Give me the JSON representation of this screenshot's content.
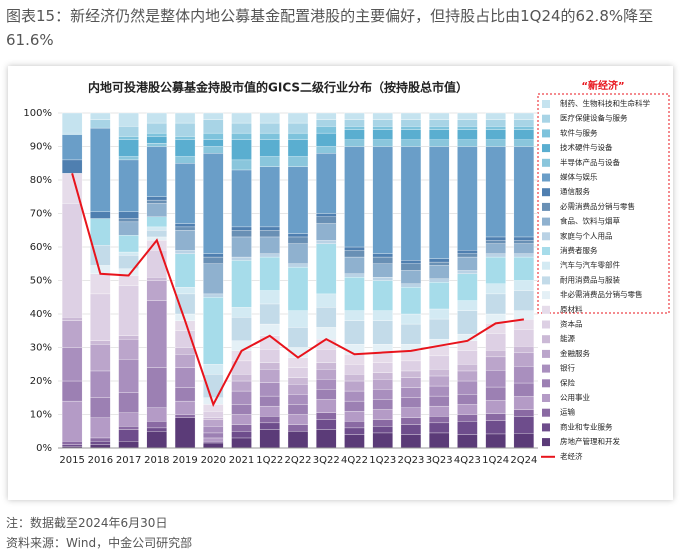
{
  "header": {
    "title": "图表15：新经济仍然是整体内地公募基金配置港股的主要偏好，但持股占比由1Q24的62.8%降至61.6%"
  },
  "footer": {
    "note": "注：数据截至2024年6月30日",
    "source": "资料来源：Wind，中金公司研究部"
  },
  "chart_data": {
    "type": "bar",
    "stacked": true,
    "title": "内地可投港股公募基金持股市值的GICS二级行业分布（按持股总市值）",
    "annotation": "“新经济”",
    "categories": [
      "2015",
      "2016",
      "2017",
      "2018",
      "2019",
      "2020",
      "2021",
      "1Q22",
      "2Q22",
      "3Q22",
      "4Q22",
      "1Q23",
      "2Q23",
      "3Q23",
      "4Q23",
      "1Q24",
      "2Q24"
    ],
    "ylim": [
      0,
      100
    ],
    "yticks": [
      {
        "value": 0,
        "label": "0%"
      },
      {
        "value": 10,
        "label": "10%"
      },
      {
        "value": 20,
        "label": "20%"
      },
      {
        "value": 30,
        "label": "30%"
      },
      {
        "value": 40,
        "label": "40%"
      },
      {
        "value": 50,
        "label": "50%"
      },
      {
        "value": 60,
        "label": "60%"
      },
      {
        "value": 70,
        "label": "70%"
      },
      {
        "value": 80,
        "label": "80%"
      },
      {
        "value": 90,
        "label": "90%"
      },
      {
        "value": 100,
        "label": "100%"
      }
    ],
    "grid": true,
    "series": [
      {
        "name": "制药、生物科技和生命科学",
        "color": "#c5e3ef",
        "values": [
          6,
          2,
          4,
          3,
          3,
          2,
          3,
          3,
          3,
          2,
          2,
          2,
          2,
          2,
          2,
          2,
          2
        ]
      },
      {
        "name": "医疗保健设备与服务",
        "color": "#a8d4e6",
        "values": [
          0.5,
          2.5,
          3,
          3,
          4,
          4,
          3,
          3,
          3,
          2,
          2,
          2,
          2,
          2,
          2,
          2,
          2
        ]
      },
      {
        "name": "软件与服务",
        "color": "#7ec3dc",
        "values": [
          0,
          0,
          1,
          1,
          1,
          2,
          2,
          2,
          2,
          2,
          1,
          1,
          1,
          1,
          1,
          1,
          1
        ]
      },
      {
        "name": "技术硬件与设备",
        "color": "#5aaed0",
        "values": [
          0,
          0,
          5,
          2,
          5,
          2,
          6,
          5,
          5,
          4,
          3,
          3,
          3,
          3,
          3,
          3,
          3
        ]
      },
      {
        "name": "半导体产品与设备",
        "color": "#8ac6dc",
        "values": [
          0,
          0,
          1,
          1,
          2,
          2,
          3,
          3,
          3,
          2,
          2,
          2,
          2,
          2,
          2,
          2,
          2
        ]
      },
      {
        "name": "媒体与娱乐",
        "color": "#6a9ec8",
        "values": [
          7.5,
          25,
          15.5,
          15,
          18,
          30,
          17,
          18,
          20,
          18,
          30,
          32,
          34,
          33.5,
          31,
          27,
          27
        ]
      },
      {
        "name": "通信服务",
        "color": "#4f7fb0",
        "values": [
          4,
          2,
          2,
          1,
          1,
          1,
          1,
          1,
          1,
          1,
          1,
          1,
          1,
          1,
          1,
          1,
          1
        ]
      },
      {
        "name": "必需消费品分销与零售",
        "color": "#6990b5",
        "values": [
          0,
          0,
          1,
          1,
          1,
          2,
          2,
          2,
          2,
          2,
          2,
          2,
          2,
          1,
          1,
          1,
          1
        ]
      },
      {
        "name": "食品、饮料与烟草",
        "color": "#8fb1cf",
        "values": [
          0,
          0,
          4,
          4,
          6,
          9,
          6,
          5,
          6,
          5,
          5,
          4,
          4,
          4,
          4,
          3,
          3
        ]
      },
      {
        "name": "家庭与个人用品",
        "color": "#b9d2e5",
        "values": [
          0,
          0,
          0,
          0,
          1,
          1,
          1,
          1,
          1,
          1,
          1,
          1,
          1,
          1,
          1,
          1,
          1
        ]
      },
      {
        "name": "消费者服务",
        "color": "#a6dcea",
        "values": [
          0,
          8,
          5,
          3,
          10,
          20,
          14,
          10,
          13,
          15,
          10,
          9,
          8,
          8,
          8,
          8,
          7
        ]
      },
      {
        "name": "汽车与汽车零部件",
        "color": "#d3eaf3",
        "values": [
          0,
          0,
          1,
          1,
          2,
          3,
          3,
          4,
          5,
          4,
          3,
          3,
          3,
          3,
          3,
          3,
          3
        ]
      },
      {
        "name": "耐用消费品与服装",
        "color": "#c3dbe9",
        "values": [
          0,
          6,
          4,
          2,
          6,
          7,
          7,
          6,
          6,
          6,
          7,
          7,
          6,
          6,
          7,
          6,
          6
        ]
      },
      {
        "name": "非必需消费品分销与零售",
        "color": "#e4f0f6",
        "values": [
          0,
          2.5,
          2,
          1,
          2,
          2,
          3,
          3.5,
          3,
          3.5,
          3,
          2.5,
          2,
          2,
          2,
          2.8,
          2.6
        ]
      },
      {
        "name": "原材料",
        "color": "#e6dcea",
        "values": [
          9,
          6,
          3,
          3,
          3,
          2,
          3,
          4,
          3,
          3,
          3,
          3,
          3,
          3,
          3,
          3,
          3
        ]
      },
      {
        "name": "资本品",
        "color": "#ddd0e4",
        "values": [
          34,
          14,
          15,
          8,
          5,
          2,
          4,
          4,
          3,
          4,
          3,
          3,
          3,
          4,
          4,
          5,
          5
        ]
      },
      {
        "name": "能源",
        "color": "#cbb9d6",
        "values": [
          1,
          1,
          1,
          1,
          2,
          0.5,
          2,
          2,
          2,
          2,
          2,
          2,
          2,
          2,
          2,
          2,
          2
        ]
      },
      {
        "name": "金融服务",
        "color": "#bba5cb",
        "values": [
          8,
          8,
          6,
          6,
          4,
          2,
          3,
          4,
          3,
          3,
          3,
          3,
          3,
          3,
          3,
          4,
          4
        ]
      },
      {
        "name": "银行",
        "color": "#a98fbe",
        "values": [
          10,
          8,
          10,
          20,
          6,
          2,
          4,
          4,
          3,
          3,
          3,
          3,
          3,
          3,
          4,
          5,
          5
        ]
      },
      {
        "name": "保险",
        "color": "#9c80b3",
        "values": [
          6,
          6,
          6,
          12,
          4,
          1.5,
          3,
          3,
          3,
          3,
          3,
          3,
          3,
          3,
          3,
          4,
          4
        ]
      },
      {
        "name": "公用事业",
        "color": "#b49bc6",
        "values": [
          12,
          6,
          4,
          4,
          4,
          1,
          3,
          3,
          3,
          4,
          3,
          3,
          3,
          3,
          3,
          4,
          4
        ]
      },
      {
        "name": "运输",
        "color": "#8a6aa3",
        "values": [
          1,
          1,
          1,
          2,
          1,
          0.5,
          2,
          2,
          2,
          2,
          2,
          2,
          2,
          2,
          2,
          2,
          2
        ]
      },
      {
        "name": "商业和专业服务",
        "color": "#6e4d8c",
        "values": [
          0.5,
          1,
          3.5,
          1,
          0,
          0,
          2,
          2,
          0,
          3,
          2,
          2,
          3,
          3,
          4,
          4,
          5
        ]
      },
      {
        "name": "房地产管理和开发",
        "color": "#5b3b78",
        "values": [
          0.5,
          1,
          2,
          5,
          9,
          1.5,
          3,
          5.5,
          5,
          5.5,
          4,
          4.5,
          4,
          4.5,
          4,
          4.2,
          4.4
        ]
      },
      {
        "name": "老经济",
        "color": "#e8141c",
        "type": "line",
        "values": [
          82,
          52,
          51.5,
          62,
          38,
          13,
          29,
          33.5,
          27,
          32.5,
          28,
          28.5,
          29,
          30.5,
          32,
          37.2,
          38.4
        ]
      }
    ]
  }
}
